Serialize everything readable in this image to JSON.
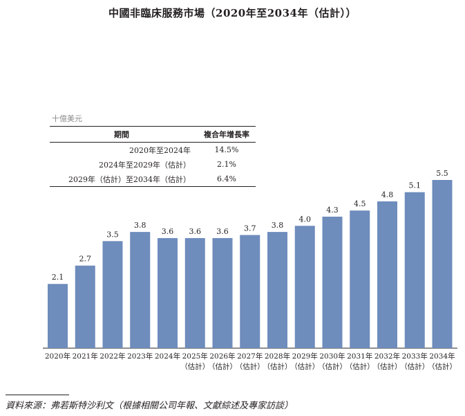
{
  "title": "中國非臨床服務市場（2020年至2034年（估計））",
  "unit_label": "十億美元",
  "cagr_table": {
    "headers": [
      "期間",
      "複合年增長率"
    ],
    "rows": [
      {
        "period": "2020年至2024年",
        "rate": "14.5%"
      },
      {
        "period": "2024年至2029年（估計）",
        "rate": "2.1%"
      },
      {
        "period": "2029年（估計）至2034年（估計）",
        "rate": "6.4%"
      }
    ]
  },
  "chart_data": {
    "type": "bar",
    "title": "中國非臨床服務市場（2020年至2034年（估計））",
    "ylabel": "十億美元",
    "xlabel": "",
    "categories": [
      "2020年",
      "2021年",
      "2022年",
      "2023年",
      "2024年",
      "2025年",
      "2026年",
      "2027年",
      "2028年",
      "2029年",
      "2030年",
      "2031年",
      "2032年",
      "2033年",
      "2034年"
    ],
    "category_notes": [
      "",
      "",
      "",
      "",
      "",
      "（估計）",
      "（估計）",
      "（估計）",
      "（估計）",
      "（估計）",
      "（估計）",
      "（估計）",
      "（估計）",
      "（估計）",
      "（估計）"
    ],
    "values": [
      2.1,
      2.7,
      3.5,
      3.8,
      3.6,
      3.6,
      3.6,
      3.7,
      3.8,
      4.0,
      4.3,
      4.5,
      4.8,
      5.1,
      5.5
    ],
    "value_labels": [
      "2.1",
      "2.7",
      "3.5",
      "3.8",
      "3.6",
      "3.6",
      "3.6",
      "3.7",
      "3.8",
      "4.0",
      "4.3",
      "4.5",
      "4.8",
      "5.1",
      "5.5"
    ],
    "ylim": [
      0,
      5.5
    ],
    "grid": false,
    "bar_color": "#6e8cbc"
  },
  "source_text": "資料來源：弗若斯特沙利文（根據相關公司年報、文獻綜述及專家訪談）"
}
